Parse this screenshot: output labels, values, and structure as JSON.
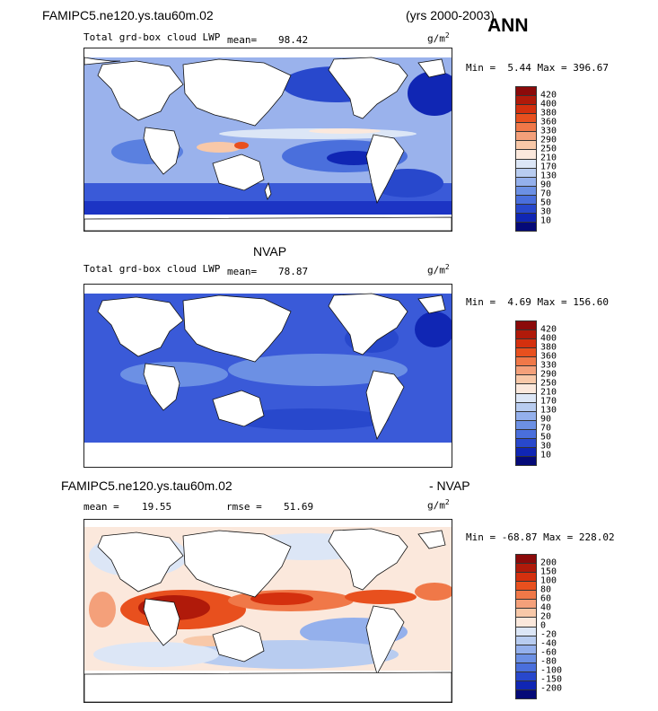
{
  "header": {
    "case_name": "FAMIPC5.ne120.ys.tau60m.02",
    "years": "(yrs 2000-2003)",
    "season": "ANN"
  },
  "panels": [
    {
      "subtitle": "",
      "field_label": "Total grd-box cloud LWP",
      "stats": [
        {
          "label": "mean=",
          "value": "98.42"
        }
      ],
      "units": "g/m",
      "units_exp": "2",
      "minmax": {
        "min_label": "Min =",
        "min": "5.44",
        "max_label": "Max =",
        "max": "396.67"
      }
    },
    {
      "subtitle": "NVAP",
      "field_label": "Total grd-box cloud LWP",
      "stats": [
        {
          "label": "mean=",
          "value": "78.87"
        }
      ],
      "units": "g/m",
      "units_exp": "2",
      "minmax": {
        "min_label": "Min =",
        "min": "4.69",
        "max_label": "Max =",
        "max": "156.60"
      }
    },
    {
      "subtitle_left": "FAMIPC5.ne120.ys.tau60m.02",
      "subtitle_right": "- NVAP",
      "field_label": "",
      "stats": [
        {
          "label": "mean =",
          "value": "19.55"
        },
        {
          "label": "rmse =",
          "value": "51.69"
        }
      ],
      "units": "g/m",
      "units_exp": "2",
      "minmax": {
        "min_label": "Min =",
        "min": "-68.87",
        "max_label": "Max =",
        "max": "228.02"
      }
    }
  ],
  "colorbar_abs": {
    "labels": [
      "420",
      "400",
      "380",
      "360",
      "330",
      "290",
      "250",
      "210",
      "170",
      "130",
      "90",
      "70",
      "50",
      "30",
      "10"
    ],
    "colors": [
      "#8b0a0a",
      "#b01a0a",
      "#d4300e",
      "#e8501e",
      "#f07848",
      "#f4a07a",
      "#f8c8a8",
      "#fbe8dc",
      "#dce6f6",
      "#b8ccf0",
      "#94b0ec",
      "#6c90e4",
      "#4a6fdc",
      "#2848cc",
      "#1026b4",
      "#050a78"
    ]
  },
  "colorbar_diff": {
    "labels": [
      "200",
      "150",
      "100",
      "80",
      "60",
      "40",
      "20",
      "0",
      "-20",
      "-40",
      "-60",
      "-80",
      "-100",
      "-150",
      "-200"
    ],
    "colors": [
      "#8b0a0a",
      "#b01a0a",
      "#d4300e",
      "#e8501e",
      "#f07848",
      "#f4a07a",
      "#f8c8a8",
      "#fbe8dc",
      "#dce6f6",
      "#b8ccf0",
      "#94b0ec",
      "#6c90e4",
      "#4a6fdc",
      "#2848cc",
      "#1026b4",
      "#050a78"
    ]
  }
}
